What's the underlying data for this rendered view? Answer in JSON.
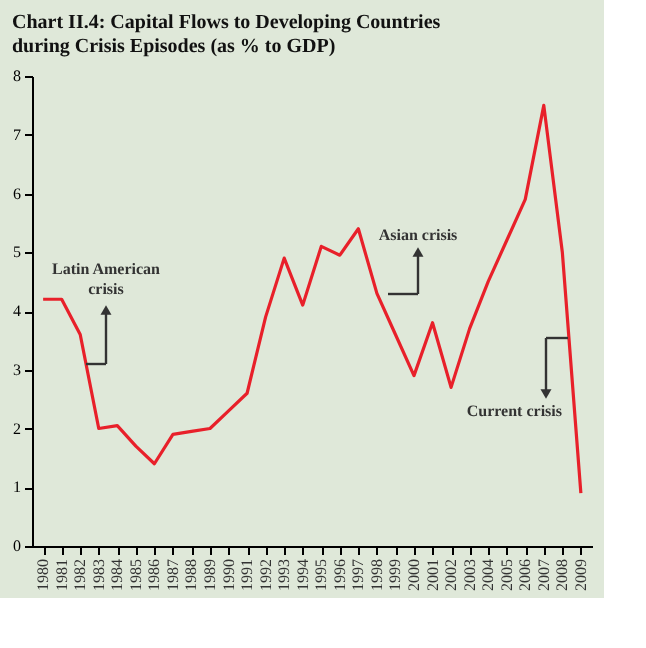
{
  "chart_data": {
    "type": "line",
    "title": "Chart II.4: Capital Flows to Developing Countries during Crisis Episodes (as % to GDP)",
    "categories": [
      "1980",
      "1981",
      "1982",
      "1983",
      "1984",
      "1985",
      "1986",
      "1987",
      "1988",
      "1989",
      "1990",
      "1991",
      "1992",
      "1993",
      "1994",
      "1995",
      "1996",
      "1997",
      "1998",
      "1999",
      "2000",
      "2001",
      "2002",
      "2003",
      "2004",
      "2005",
      "2006",
      "2007",
      "2008",
      "2009"
    ],
    "series": [
      {
        "color": "#e8202a",
        "values": [
          4.2,
          4.2,
          3.6,
          2.0,
          2.05,
          1.7,
          1.4,
          1.9,
          1.95,
          2.0,
          2.3,
          2.6,
          3.9,
          4.9,
          4.1,
          5.1,
          4.95,
          5.4,
          4.3,
          3.6,
          2.9,
          3.8,
          2.7,
          3.7,
          4.5,
          5.2,
          5.9,
          7.5,
          5.0,
          0.9
        ]
      }
    ],
    "ylim": [
      0,
      8
    ],
    "yticks": [
      0,
      1,
      2,
      3,
      4,
      5,
      6,
      7,
      8
    ],
    "grid": false,
    "marker": "none",
    "line_style": "solid",
    "annotations": [
      "Latin American crisis",
      "Asian crisis",
      "Current crisis"
    ]
  }
}
